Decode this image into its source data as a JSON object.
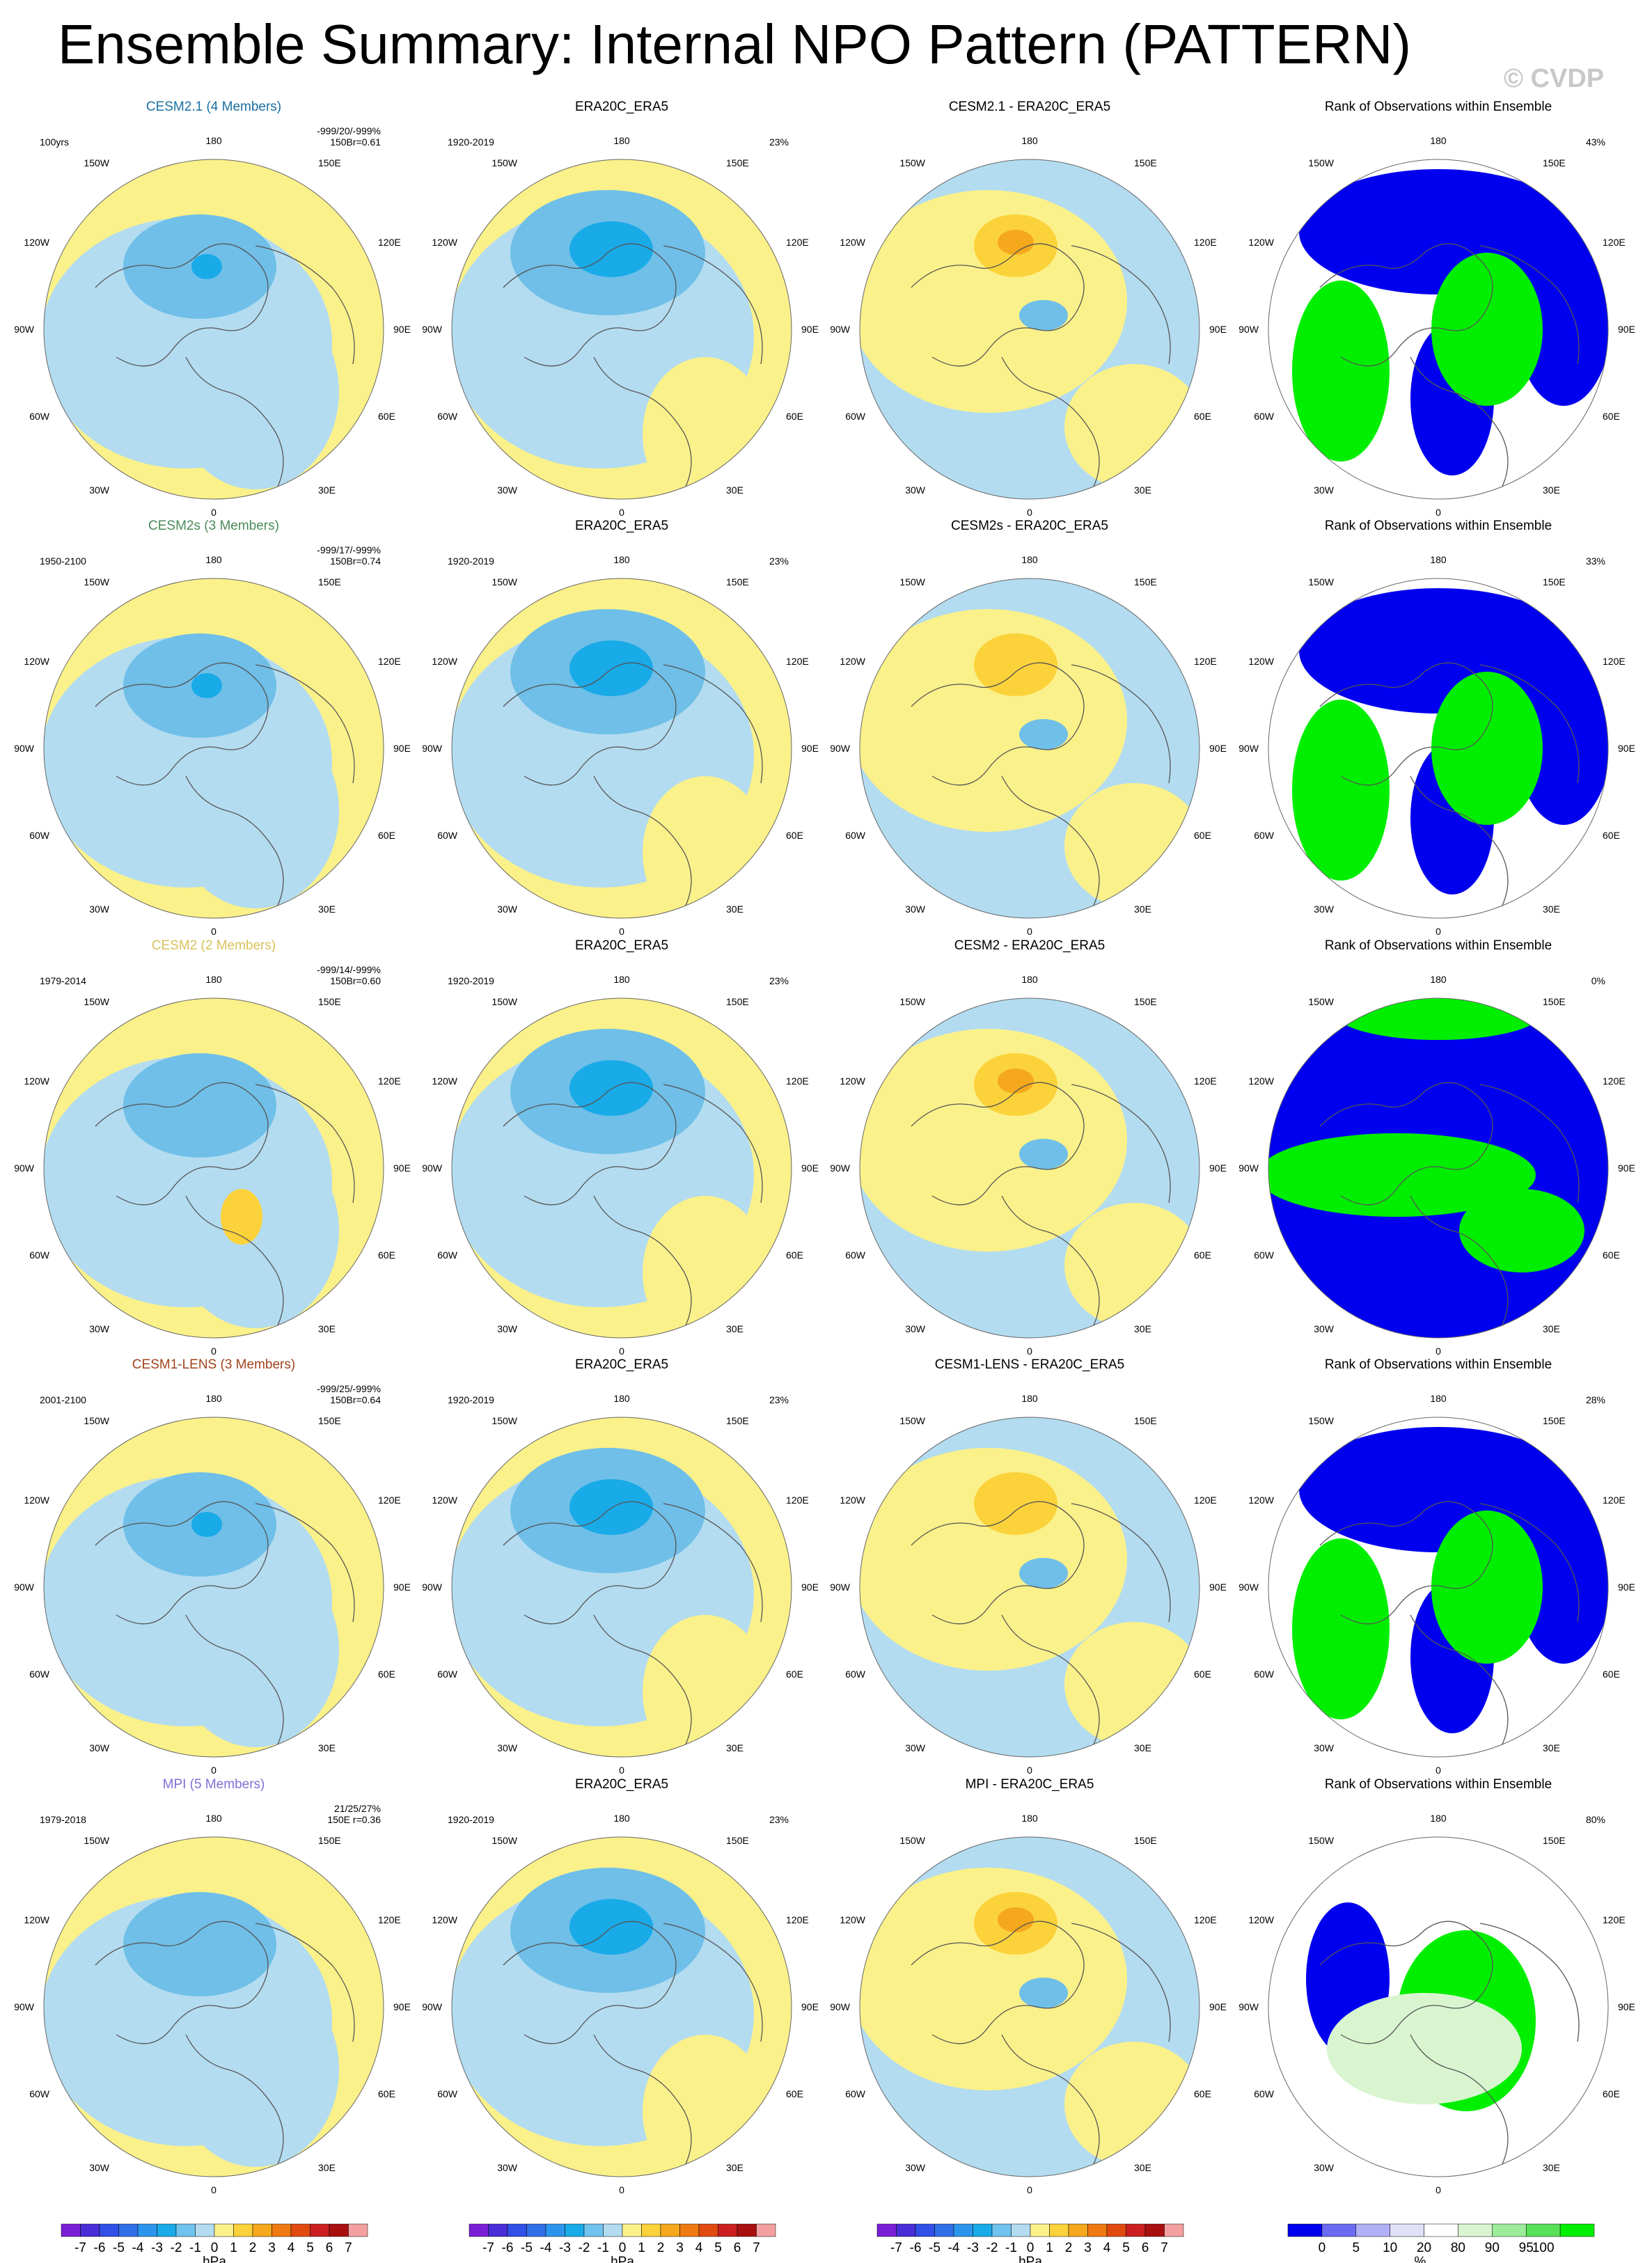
{
  "page": {
    "title": "Ensemble Summary: Internal NPO Pattern (PATTERN)",
    "watermark": "© CVDP"
  },
  "colors": {
    "land_yellow": "#fbf18a",
    "pale_blue": "#b3dcf0",
    "mid_blue": "#6fbfe8",
    "deep_blue": "#19aae8",
    "light_orange": "#fcd23a",
    "orange": "#f5a81b",
    "rank_blue": "#0000ee",
    "rank_green": "#00ee00",
    "rank_pale_green": "#d8f5d0"
  },
  "polar_labels": {
    "top": "180",
    "bottom": "0",
    "left": "90W",
    "right": "90E",
    "upper_left_1": "150W",
    "upper_left_2": "120W",
    "lower_left_1": "60W",
    "lower_left_2": "30W",
    "upper_right_1": "150E",
    "upper_right_2": "120E",
    "lower_right_1": "60E",
    "lower_right_2": "30E"
  },
  "chart_data": {
    "type": "heatmap",
    "description_variable": "NPO pattern regression (hPa)",
    "rows": [
      {
        "model_title": "CESM2.1 (4 Members)",
        "model_color": "#1a6fa0",
        "model_period": "100yrs",
        "model_stats_1": "-999/20/-999%",
        "model_stats_2": "150Br=0.61",
        "obs_title": "ERA20C_ERA5",
        "obs_period": "1920-2019",
        "obs_pct": "23%",
        "diff_title": "CESM2.1 - ERA20C_ERA5",
        "rank_title": "Rank of Observations within Ensemble",
        "rank_pct": "43%",
        "model_min_hpa": -4,
        "obs_min_hpa": -4,
        "diff_max_hpa": 3
      },
      {
        "model_title": "CESM2s (3 Members)",
        "model_color": "#4a8a5a",
        "model_period": "1950-2100",
        "model_stats_1": "-999/17/-999%",
        "model_stats_2": "150Br=0.74",
        "obs_title": "ERA20C_ERA5",
        "obs_period": "1920-2019",
        "obs_pct": "23%",
        "diff_title": "CESM2s - ERA20C_ERA5",
        "rank_title": "Rank of Observations within Ensemble",
        "rank_pct": "33%",
        "model_min_hpa": -4,
        "obs_min_hpa": -4,
        "diff_max_hpa": 2
      },
      {
        "model_title": "CESM2 (2 Members)",
        "model_color": "#d9c25a",
        "model_period": "1979-2014",
        "model_stats_1": "-999/14/-999%",
        "model_stats_2": "150Br=0.60",
        "obs_title": "ERA20C_ERA5",
        "obs_period": "1920-2019",
        "obs_pct": "23%",
        "diff_title": "CESM2 - ERA20C_ERA5",
        "rank_title": "Rank of Observations within Ensemble",
        "rank_pct": "0%",
        "model_min_hpa": -3,
        "obs_min_hpa": -4,
        "diff_max_hpa": 3
      },
      {
        "model_title": "CESM1-LENS (3 Members)",
        "model_color": "#a0441a",
        "model_period": "2001-2100",
        "model_stats_1": "-999/25/-999%",
        "model_stats_2": "150Br=0.64",
        "obs_title": "ERA20C_ERA5",
        "obs_period": "1920-2019",
        "obs_pct": "23%",
        "diff_title": "CESM1-LENS - ERA20C_ERA5",
        "rank_title": "Rank of Observations within Ensemble",
        "rank_pct": "28%",
        "model_min_hpa": -4,
        "obs_min_hpa": -4,
        "diff_max_hpa": 2
      },
      {
        "model_title": "MPI (5 Members)",
        "model_color": "#8070d8",
        "model_period": "1979-2018",
        "model_stats_1": "21/25/27%",
        "model_stats_2": "150E  r=0.36",
        "obs_title": "ERA20C_ERA5",
        "obs_period": "1920-2019",
        "obs_pct": "23%",
        "diff_title": "MPI - ERA20C_ERA5",
        "rank_title": "Rank of Observations within Ensemble",
        "rank_pct": "80%",
        "model_min_hpa": -2,
        "obs_min_hpa": -4,
        "diff_max_hpa": 3
      }
    ],
    "colorbar_hpa": {
      "unit": "hPa",
      "labels": [
        "-7",
        "-6",
        "-5",
        "-4",
        "-3",
        "-2",
        "-1",
        "0",
        "1",
        "2",
        "3",
        "4",
        "5",
        "6",
        "7"
      ],
      "colors": [
        "#7a1fd8",
        "#4a2ed8",
        "#3050e8",
        "#2f6fe8",
        "#2b95ee",
        "#19aae8",
        "#6fc3ee",
        "#b3dcf0",
        "#fbf18a",
        "#fcd23a",
        "#f5a81b",
        "#f07a12",
        "#e04a10",
        "#cc1f1f",
        "#a80f0f",
        "#f4a0a0"
      ]
    },
    "colorbar_rank": {
      "unit": "%",
      "labels": [
        "0",
        "5",
        "10",
        "20",
        "80",
        "90",
        "95",
        "100"
      ],
      "colors": [
        "#0000ee",
        "#6a6af2",
        "#b0b0f6",
        "#e0e0f8",
        "#ffffff",
        "#d8f5d0",
        "#9cec9c",
        "#58e058",
        "#00ee00"
      ]
    }
  }
}
